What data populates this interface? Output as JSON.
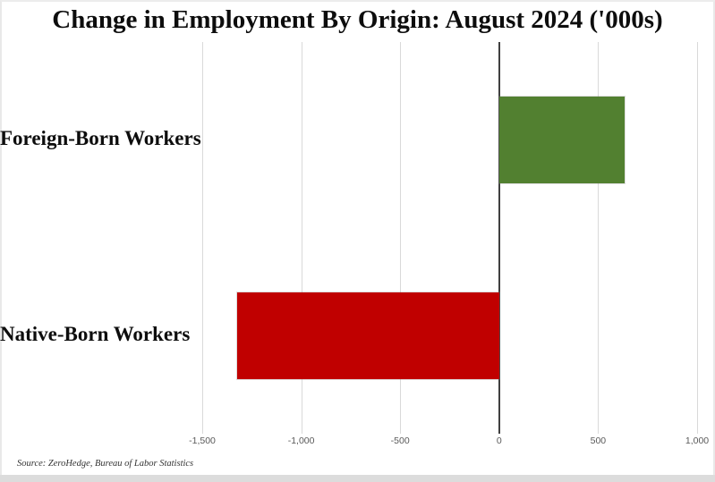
{
  "title": "Change in Employment By Origin: August 2024 ('000s)",
  "source_note": "Source: ZeroHedge, Bureau of Labor Statistics",
  "chart_data": {
    "type": "bar",
    "orientation": "horizontal",
    "title": "Change in Employment By Origin: August 2024 ('000s)",
    "categories": [
      "Foreign-Born Workers",
      "Native-Born Workers"
    ],
    "values": [
      635,
      -1325
    ],
    "bar_colors": [
      "#528030",
      "#c00000"
    ],
    "xlim": [
      -1500,
      1000
    ],
    "xticks": [
      -1500,
      -1000,
      -500,
      0,
      500,
      1000
    ],
    "xtick_labels": [
      "-1,500",
      "-1,000",
      "-500",
      "0",
      "500",
      "1,000"
    ],
    "grid": "vertical",
    "legend": "none",
    "gridline_color": "#d9d9d9",
    "zero_line_color": "#404040",
    "tick_label_color": "#595959",
    "source": "Source: ZeroHedge, Bureau of Labor Statistics"
  }
}
